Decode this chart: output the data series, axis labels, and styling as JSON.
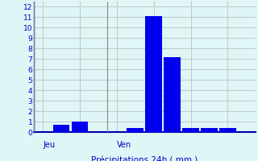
{
  "values": [
    0,
    0.7,
    1.0,
    0,
    0,
    0.4,
    11.1,
    7.2,
    0.4,
    0.4,
    0.4,
    0
  ],
  "bar_color": "#0000ee",
  "background_color": "#e0f5f5",
  "grid_color": "#c0c8c8",
  "axis_line_color": "#0000aa",
  "ylabel_ticks": [
    0,
    1,
    2,
    3,
    4,
    5,
    6,
    7,
    8,
    9,
    10,
    11,
    12
  ],
  "ylim": [
    0,
    12.5
  ],
  "xlabel": "Précipitations 24h ( mm )",
  "xlabel_color": "#0000cc",
  "tick_label_color": "#0000cc",
  "day_labels": [
    [
      "Jeu",
      0.0
    ],
    [
      "Ven",
      4.0
    ]
  ],
  "day_label_color": "#0000cc",
  "vline_positions": [
    0,
    4
  ],
  "vline_color": "#888888",
  "n_bars": 12,
  "bar_width": 0.9
}
